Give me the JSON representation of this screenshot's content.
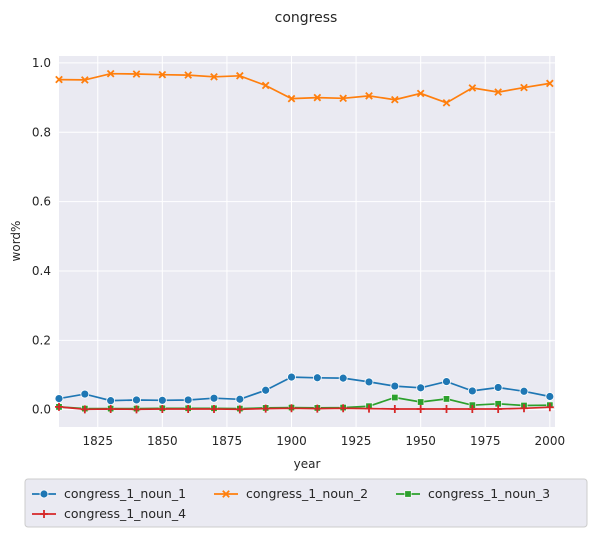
{
  "chart_data": {
    "type": "line",
    "title": "congress",
    "xlabel": "year",
    "ylabel": "word%",
    "xlim": [
      1810,
      2002
    ],
    "ylim": [
      -0.05,
      1.02
    ],
    "xticks": [
      1825,
      1850,
      1875,
      1900,
      1925,
      1950,
      1975,
      2000
    ],
    "yticks": [
      0.0,
      0.2,
      0.4,
      0.6,
      0.8,
      1.0
    ],
    "ytick_labels": [
      "0.0",
      "0.2",
      "0.4",
      "0.6",
      "0.8",
      "1.0"
    ],
    "grid": true,
    "legend_position": "bottom",
    "x": [
      1810,
      1820,
      1830,
      1840,
      1850,
      1860,
      1870,
      1880,
      1890,
      1900,
      1910,
      1920,
      1930,
      1940,
      1950,
      1960,
      1970,
      1980,
      1990,
      2000
    ],
    "series": [
      {
        "name": "congress_1_noun_1",
        "color": "#1f77b4",
        "marker": "circle",
        "values": [
          0.032,
          0.045,
          0.026,
          0.028,
          0.027,
          0.028,
          0.033,
          0.03,
          0.056,
          0.094,
          0.092,
          0.091,
          0.08,
          0.068,
          0.063,
          0.081,
          0.054,
          0.064,
          0.053,
          0.038
        ]
      },
      {
        "name": "congress_1_noun_2",
        "color": "#ff7f0e",
        "marker": "x",
        "values": [
          0.952,
          0.951,
          0.969,
          0.968,
          0.966,
          0.965,
          0.96,
          0.963,
          0.935,
          0.897,
          0.9,
          0.898,
          0.905,
          0.894,
          0.912,
          0.885,
          0.928,
          0.916,
          0.929,
          0.941
        ]
      },
      {
        "name": "congress_1_noun_3",
        "color": "#2ca02c",
        "marker": "square",
        "values": [
          0.008,
          0.003,
          0.003,
          0.003,
          0.004,
          0.004,
          0.004,
          0.003,
          0.005,
          0.006,
          0.005,
          0.006,
          0.01,
          0.035,
          0.022,
          0.031,
          0.013,
          0.017,
          0.012,
          0.013
        ]
      },
      {
        "name": "congress_1_noun_4",
        "color": "#d62728",
        "marker": "plus",
        "values": [
          0.008,
          0.001,
          0.002,
          0.001,
          0.002,
          0.002,
          0.002,
          0.001,
          0.003,
          0.004,
          0.003,
          0.004,
          0.003,
          0.002,
          0.002,
          0.002,
          0.002,
          0.002,
          0.004,
          0.007
        ]
      }
    ]
  }
}
